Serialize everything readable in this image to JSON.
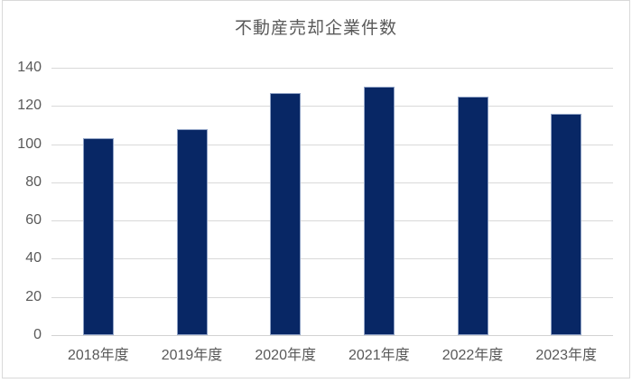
{
  "chart_data": {
    "type": "bar",
    "title": "不動産売却企業件数",
    "categories": [
      "2018年度",
      "2019年度",
      "2020年度",
      "2021年度",
      "2022年度",
      "2023年度"
    ],
    "values": [
      103,
      108,
      127,
      130,
      125,
      116
    ],
    "xlabel": "",
    "ylabel": "",
    "ylim": [
      0,
      140
    ],
    "yticks": [
      0,
      20,
      40,
      60,
      80,
      100,
      120,
      140
    ],
    "grid": true,
    "legend_position": "none",
    "colors": {
      "bar_fill": "#082765",
      "bar_edge": "#8fa2c5",
      "gridline": "#d9d9d9",
      "axis_line": "#d2d2d2",
      "text": "#595959",
      "frame_border": "#d9d9d9",
      "background": "#ffffff"
    }
  }
}
